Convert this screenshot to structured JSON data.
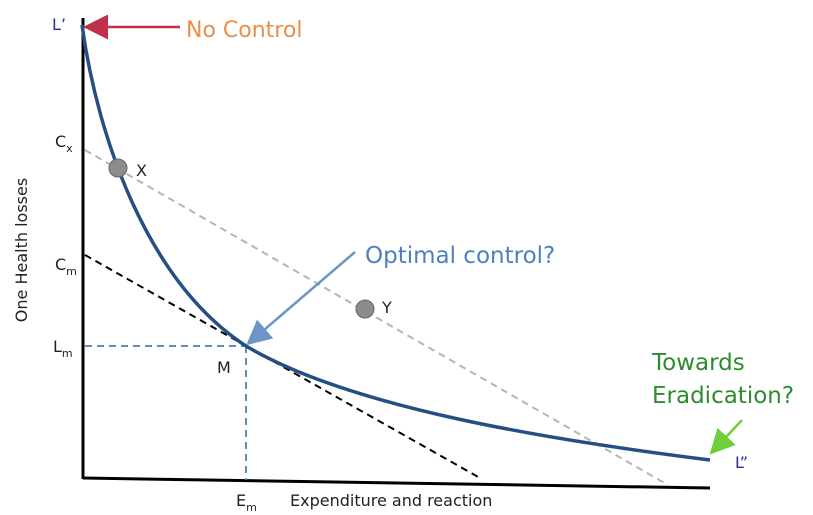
{
  "axes": {
    "y_label": "One Health losses",
    "x_label": "Expenditure and reaction"
  },
  "labels": {
    "l_prime": "L’",
    "l_double_prime": "L”",
    "cx": {
      "base": "C",
      "sub": "x"
    },
    "cm": {
      "base": "C",
      "sub": "m"
    },
    "lm": {
      "base": "L",
      "sub": "m"
    },
    "em": {
      "base": "E",
      "sub": "m"
    },
    "x_point": "X",
    "y_point": "Y",
    "m_point": "M"
  },
  "annotations": {
    "no_control": "No Control",
    "optimal": "Optimal control?",
    "eradication": [
      "Towards",
      "Eradication?"
    ]
  }
}
